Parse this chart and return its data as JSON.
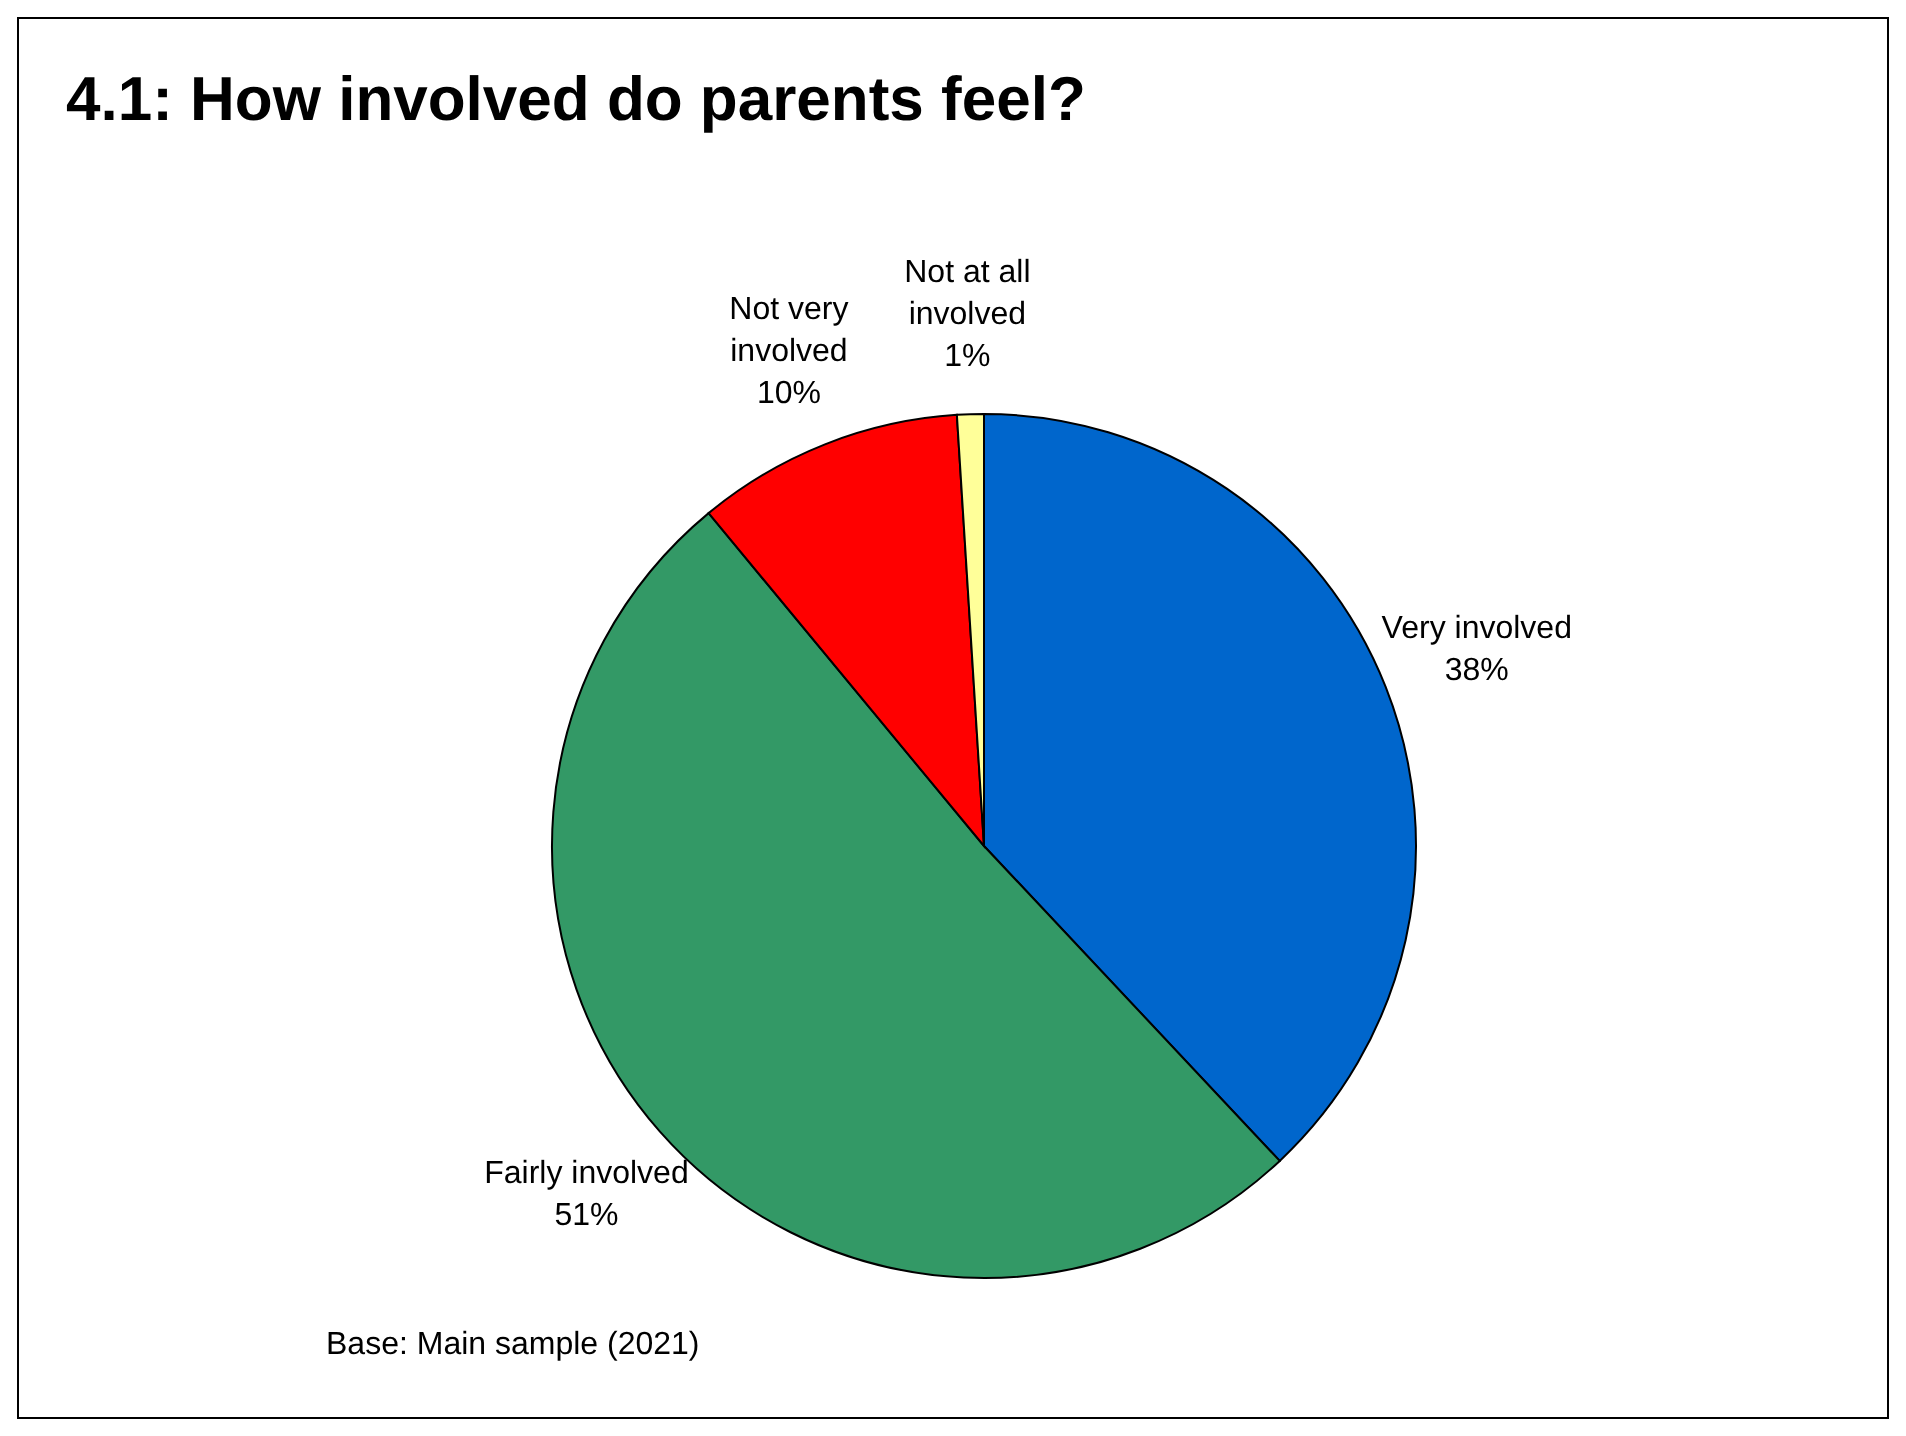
{
  "chart_data": {
    "type": "pie",
    "title": "4.1:  How involved do parents feel?",
    "categories": [
      "Very involved",
      "Fairly involved",
      "Not very involved",
      "Not at all involved"
    ],
    "values": [
      38,
      51,
      10,
      1
    ],
    "colors": [
      "#0066cc",
      "#339966",
      "#ff0000",
      "#ffff99"
    ],
    "value_labels": [
      "38%",
      "51%",
      "10%",
      "1%"
    ],
    "annotations": [
      "Base:  Main sample (2021)"
    ]
  }
}
